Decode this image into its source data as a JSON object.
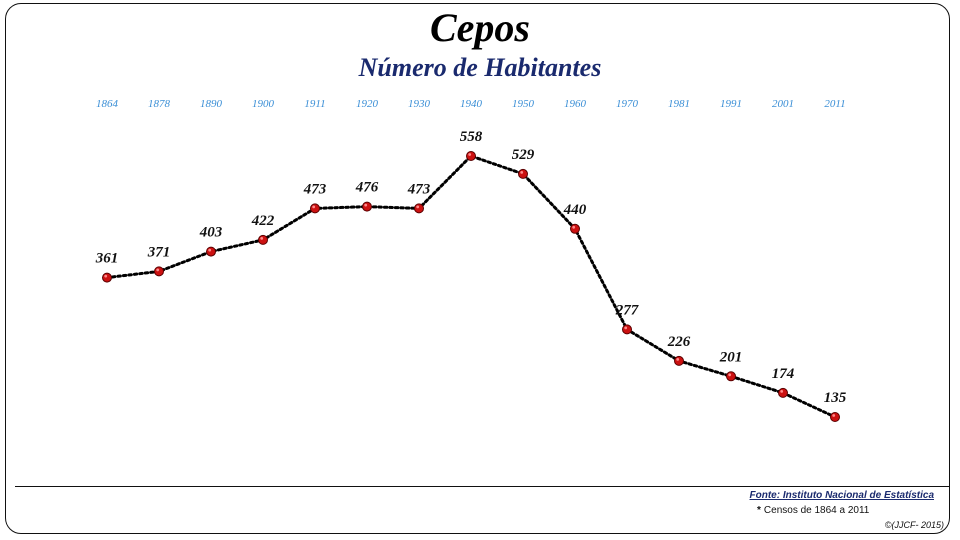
{
  "chart_data": {
    "type": "line",
    "title": "Cepos",
    "subtitle": "Número de Habitantes",
    "categories": [
      "1864",
      "1878",
      "1890",
      "1900",
      "1911",
      "1920",
      "1930",
      "1940",
      "1950",
      "1960",
      "1970",
      "1981",
      "1991",
      "2001",
      "2011"
    ],
    "series": [
      {
        "values": [
          361,
          371,
          403,
          422,
          473,
          476,
          473,
          558,
          529,
          440,
          277,
          226,
          201,
          174,
          135
        ]
      }
    ],
    "ylim": [
      135,
      558
    ],
    "grid": false,
    "line_style": "dotted",
    "line_color": "#000000",
    "marker_color": "#cc1111",
    "year_label_color": "#3b8fd6"
  },
  "footer": {
    "source": "Fonte: Instituto Nacional de Estatística",
    "note_mark": "*",
    "note": "Censos de 1864 a 2011",
    "credit": "©(JJCF- 2015)"
  }
}
